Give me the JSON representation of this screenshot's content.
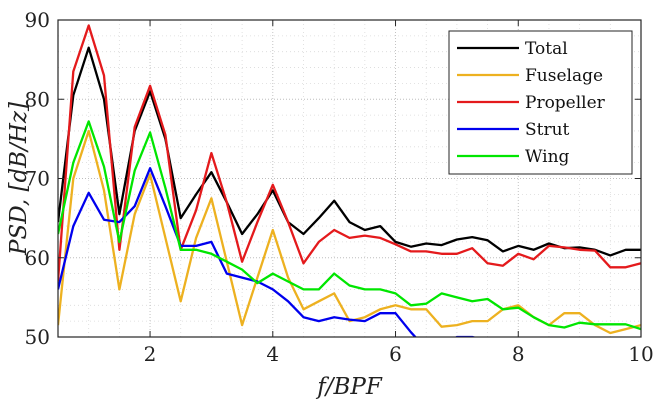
{
  "chart_data": {
    "type": "line",
    "xlabel": "f/BPF",
    "ylabel": "PSD, [dB/Hz]",
    "xlim": [
      0.5,
      10
    ],
    "ylim": [
      50,
      90
    ],
    "xticks": [
      2,
      4,
      6,
      8,
      10
    ],
    "yticks": [
      50,
      60,
      70,
      80,
      90
    ],
    "xtick_labels": [
      "2",
      "4",
      "6",
      "8",
      "10"
    ],
    "ytick_labels": [
      "50",
      "60",
      "70",
      "80",
      "90"
    ],
    "grid": true,
    "minor_grid": true,
    "legend_position": "top-right",
    "x": [
      0.5,
      0.75,
      1.0,
      1.25,
      1.5,
      1.75,
      2.0,
      2.25,
      2.5,
      2.75,
      3.0,
      3.25,
      3.5,
      3.75,
      4.0,
      4.25,
      4.5,
      4.75,
      5.0,
      5.25,
      5.5,
      5.75,
      6.0,
      6.25,
      6.5,
      6.75,
      7.0,
      7.25,
      7.5,
      7.75,
      8.0,
      8.25,
      8.5,
      8.75,
      9.0,
      9.25,
      9.5,
      9.75,
      10.0
    ],
    "series": [
      {
        "name": "Total",
        "color": "#000000",
        "values": [
          64.5,
          80.5,
          86.5,
          80.0,
          65.5,
          76.0,
          81.0,
          75.0,
          65.0,
          68.0,
          70.8,
          67.0,
          63.0,
          65.5,
          68.5,
          64.5,
          63.0,
          65.0,
          67.2,
          64.5,
          63.5,
          64.0,
          62.0,
          61.4,
          61.8,
          61.6,
          62.3,
          62.6,
          62.2,
          60.8,
          61.5,
          61.0,
          61.8,
          61.2,
          61.3,
          61.0,
          60.3,
          61.0,
          61.0
        ]
      },
      {
        "name": "Fuselage",
        "color": "#EDB120",
        "values": [
          51.5,
          70.0,
          76.0,
          68.5,
          56.0,
          65.5,
          70.5,
          62.5,
          54.5,
          62.5,
          67.5,
          59.5,
          51.5,
          57.5,
          63.5,
          57.5,
          53.5,
          54.5,
          55.5,
          52.0,
          52.5,
          53.5,
          54.0,
          53.5,
          53.5,
          51.3,
          51.5,
          52.0,
          52.0,
          53.5,
          54.0,
          52.5,
          51.5,
          53.0,
          53.0,
          51.5,
          50.5,
          51.0,
          51.5
        ]
      },
      {
        "name": "Propeller",
        "color": "#E41A1C",
        "values": [
          57.0,
          83.5,
          89.3,
          83.0,
          61.0,
          76.5,
          81.7,
          75.5,
          61.0,
          66.0,
          73.2,
          67.0,
          59.5,
          64.5,
          69.2,
          64.5,
          59.3,
          62.0,
          63.5,
          62.5,
          62.8,
          62.5,
          61.7,
          60.8,
          60.8,
          60.5,
          60.5,
          61.2,
          59.3,
          59.0,
          60.5,
          59.8,
          61.5,
          61.3,
          61.0,
          60.9,
          58.8,
          58.8,
          59.3
        ]
      },
      {
        "name": "Strut",
        "color": "#0000EE",
        "values": [
          56.0,
          64.0,
          68.2,
          64.8,
          64.5,
          66.5,
          71.3,
          66.5,
          61.5,
          61.5,
          62.0,
          58.0,
          57.5,
          57.0,
          56.0,
          54.5,
          52.5,
          52.0,
          52.5,
          52.2,
          52.0,
          53.0,
          53.0,
          50.6,
          48.5,
          48.8,
          50.0,
          50.0,
          49.5,
          49.0,
          49.0,
          48.5,
          48.0,
          48.2,
          48.0,
          48.5,
          48.3,
          47.8,
          48.0
        ]
      },
      {
        "name": "Wing",
        "color": "#00E600",
        "values": [
          63.0,
          72.0,
          77.2,
          71.5,
          62.0,
          71.0,
          75.8,
          68.8,
          61.0,
          61.0,
          60.5,
          59.5,
          58.5,
          56.8,
          58.0,
          57.0,
          56.0,
          56.0,
          58.0,
          56.5,
          56.0,
          56.0,
          55.5,
          54.0,
          54.2,
          55.5,
          55.0,
          54.5,
          54.8,
          53.5,
          53.7,
          52.5,
          51.5,
          51.2,
          51.8,
          51.6,
          51.6,
          51.6,
          51.0
        ]
      }
    ]
  }
}
